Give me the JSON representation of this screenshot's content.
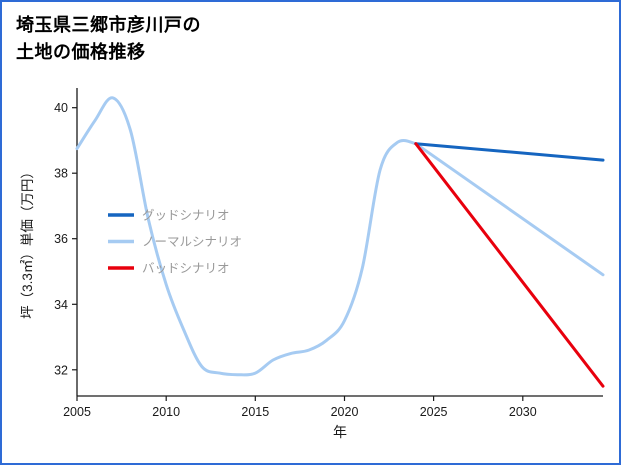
{
  "page": {
    "title_lines": [
      "埼玉県三郷市彦川戸の",
      "土地の価格推移"
    ]
  },
  "colors": {
    "border": "#2e6bd6",
    "good": "#1565c0",
    "normal": "#a6cbf2",
    "bad": "#e8000d",
    "axis": "#1a1a1a",
    "legend_text": "#999999"
  },
  "chart_data": {
    "type": "line",
    "title": "埼玉県三郷市彦川戸の土地の価格推移",
    "xlabel": "年",
    "ylabel": "坪（3.3㎡）単価（万円）",
    "xlim": [
      2005,
      2034.5
    ],
    "ylim": [
      31.2,
      40.6
    ],
    "xticks": [
      2005,
      2010,
      2015,
      2020,
      2025,
      2030
    ],
    "yticks": [
      32,
      34,
      36,
      38,
      40
    ],
    "grid": false,
    "legend_position": "left-middle",
    "legend": [
      {
        "label": "グッドシナリオ",
        "color": "good"
      },
      {
        "label": "ノーマルシナリオ",
        "color": "normal"
      },
      {
        "label": "バッドシナリオ",
        "color": "bad"
      }
    ],
    "series": [
      {
        "id": "history",
        "color": "normal",
        "smooth": true,
        "x": [
          2005,
          2006,
          2007,
          2008,
          2009,
          2010,
          2011,
          2012,
          2013,
          2014,
          2015,
          2016,
          2017,
          2018,
          2019,
          2020,
          2021,
          2022,
          2023,
          2024
        ],
        "y": [
          38.75,
          39.6,
          40.3,
          39.3,
          36.6,
          34.6,
          33.2,
          32.1,
          31.9,
          31.85,
          31.9,
          32.3,
          32.5,
          32.6,
          32.9,
          33.5,
          35.1,
          38.1,
          38.95,
          38.9
        ]
      },
      {
        "id": "normal-scenario",
        "color": "normal",
        "smooth": false,
        "x": [
          2024,
          2034.5
        ],
        "y": [
          38.9,
          34.9
        ]
      },
      {
        "id": "good-scenario",
        "color": "good",
        "smooth": false,
        "x": [
          2024,
          2034.5
        ],
        "y": [
          38.9,
          38.4
        ]
      },
      {
        "id": "bad-scenario",
        "color": "bad",
        "smooth": false,
        "x": [
          2024,
          2034.5
        ],
        "y": [
          38.9,
          31.5
        ]
      }
    ]
  }
}
